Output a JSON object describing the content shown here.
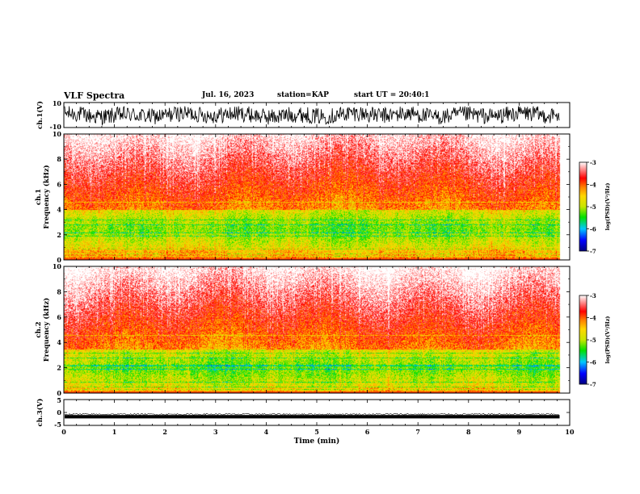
{
  "header": {
    "title": "VLF Spectra",
    "date": "Jul. 16, 2023",
    "station": "station=KAP",
    "start": "start UT = 20:40:1"
  },
  "chart_data": [
    {
      "type": "line",
      "name": "ch1-waveform",
      "ylabel": "ch.1(V)",
      "ylim": [
        -10,
        10
      ],
      "ytick_labels": [
        "10",
        "-10"
      ],
      "xlim": [
        0,
        10
      ],
      "grid": false,
      "description_values": {
        "signal_range": [
          -8,
          7
        ]
      }
    },
    {
      "type": "heatmap",
      "name": "ch1-spectrogram",
      "ylabel": "ch.1\nFrequency (kHz)",
      "ylim": [
        0,
        10
      ],
      "ytick_labels": [
        "0",
        "2",
        "4",
        "6",
        "8",
        "10"
      ],
      "xlim": [
        0,
        10
      ],
      "data_end_min": 9.8,
      "colorbar": {
        "label": "log(PSD)(V²/Hz)",
        "range": [
          -7,
          -3
        ],
        "tick_labels": [
          "-3",
          "-4",
          "-5",
          "-6",
          "-7"
        ],
        "colors": [
          "#000080",
          "#0000ff",
          "#00c8ff",
          "#00e000",
          "#c8e600",
          "#ffd700",
          "#ff8000",
          "#ff0000",
          "#ffffff"
        ]
      },
      "band_kHz": {
        "strong_low": 1.0,
        "strong_high": 4.0,
        "hiss_top": 10.0
      }
    },
    {
      "type": "heatmap",
      "name": "ch2-spectrogram",
      "ylabel": "ch.2\nFrequency (kHz)",
      "ylim": [
        0,
        10
      ],
      "ytick_labels": [
        "0",
        "2",
        "4",
        "6",
        "8",
        "10"
      ],
      "xlim": [
        0,
        10
      ],
      "data_end_min": 9.8,
      "colorbar": {
        "label": "log(PSD)(V²/Hz)",
        "range": [
          -7,
          -3
        ],
        "tick_labels": [
          "-3",
          "-4",
          "-5",
          "-6",
          "-7"
        ],
        "colors": [
          "#000080",
          "#0000ff",
          "#00c8ff",
          "#00e000",
          "#c8e600",
          "#ffd700",
          "#ff8000",
          "#ff0000",
          "#ffffff"
        ]
      },
      "band_kHz": {
        "strong_low": 0.5,
        "strong_high": 3.5,
        "hiss_top": 10.0
      }
    },
    {
      "type": "line",
      "name": "ch3-waveform",
      "ylabel": "ch.3(V)",
      "ylim": [
        -5,
        5
      ],
      "ytick_labels": [
        "5",
        "0",
        "-5"
      ],
      "xlim": [
        0,
        10
      ],
      "xlabel": "Time (min)",
      "xtick_labels": [
        "0",
        "1",
        "2",
        "3",
        "4",
        "5",
        "6",
        "7",
        "8",
        "9",
        "10"
      ],
      "description_values": {
        "signal_range": [
          -0.8,
          0.5
        ],
        "offset": -1.5
      }
    }
  ]
}
